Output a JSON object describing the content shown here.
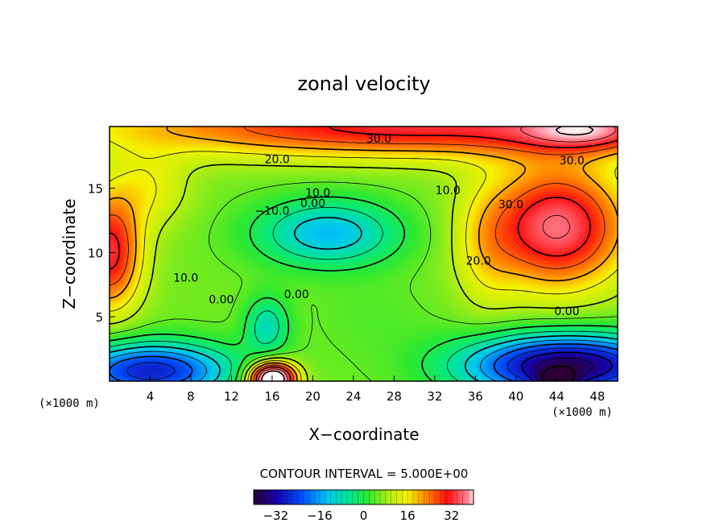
{
  "chart_data": {
    "type": "heatmap",
    "title": "zonal velocity",
    "xlabel": "X−coordinate",
    "ylabel": "Z−coordinate",
    "x_unit_left": "(×1000 m)",
    "x_unit_right": "(×1000 m)",
    "xlim": [
      0,
      50
    ],
    "ylim": [
      0,
      19.8
    ],
    "xticks": [
      4,
      8,
      12,
      16,
      20,
      24,
      28,
      32,
      36,
      40,
      44,
      48
    ],
    "yticks": [
      5,
      10,
      15
    ],
    "colorscale": "rainbow (purple-blue-cyan-green-yellow-red-pink)",
    "clim": [
      -40,
      40
    ],
    "contour_interval_text": "CONTOUR INTERVAL = 5.000E+00",
    "colorbar_ticks": [
      "−32",
      "−16",
      "0",
      "16",
      "32"
    ],
    "colorbar_tick_values": [
      -32,
      -16,
      0,
      16,
      32
    ],
    "contour_labels": [
      {
        "text": "30.0",
        "x": 26.5,
        "z": 18.8
      },
      {
        "text": "20.0",
        "x": 16.5,
        "z": 17.2
      },
      {
        "text": "30.0",
        "x": 45.5,
        "z": 17.1
      },
      {
        "text": "10.0",
        "x": 20.5,
        "z": 14.6
      },
      {
        "text": "0.00",
        "x": 20.0,
        "z": 13.8
      },
      {
        "text": "−10.0",
        "x": 16.0,
        "z": 13.2
      },
      {
        "text": "10.0",
        "x": 33.3,
        "z": 14.8
      },
      {
        "text": "30.0",
        "x": 39.5,
        "z": 13.7
      },
      {
        "text": "20.0",
        "x": 36.3,
        "z": 9.3
      },
      {
        "text": "10.0",
        "x": 7.5,
        "z": 8.0
      },
      {
        "text": "0.00",
        "x": 11.0,
        "z": 6.3
      },
      {
        "text": "0.00",
        "x": 18.4,
        "z": 6.7
      },
      {
        "text": "0.00",
        "x": 45.0,
        "z": 5.4
      }
    ],
    "features": [
      {
        "description": "strong positive jet along top",
        "x": 30,
        "z": 18.5,
        "value": 32
      },
      {
        "description": "positive core right side",
        "x": 44,
        "z": 12,
        "value": 40
      },
      {
        "description": "positive core left edge",
        "x": 0.5,
        "z": 10,
        "value": 30
      },
      {
        "description": "negative core center",
        "x": 21.5,
        "z": 11.5,
        "value": -14
      },
      {
        "description": "negative core lower center",
        "x": 15.5,
        "z": 4.5,
        "value": -10
      },
      {
        "description": "strong negative band along bottom right",
        "x": 44,
        "z": 1.5,
        "value": -33
      },
      {
        "description": "strong negative band along bottom left",
        "x": 3,
        "z": 1.2,
        "value": -25
      },
      {
        "description": "strong positive bump at bottom",
        "x": 16,
        "z": 0.5,
        "value": 40
      }
    ]
  }
}
